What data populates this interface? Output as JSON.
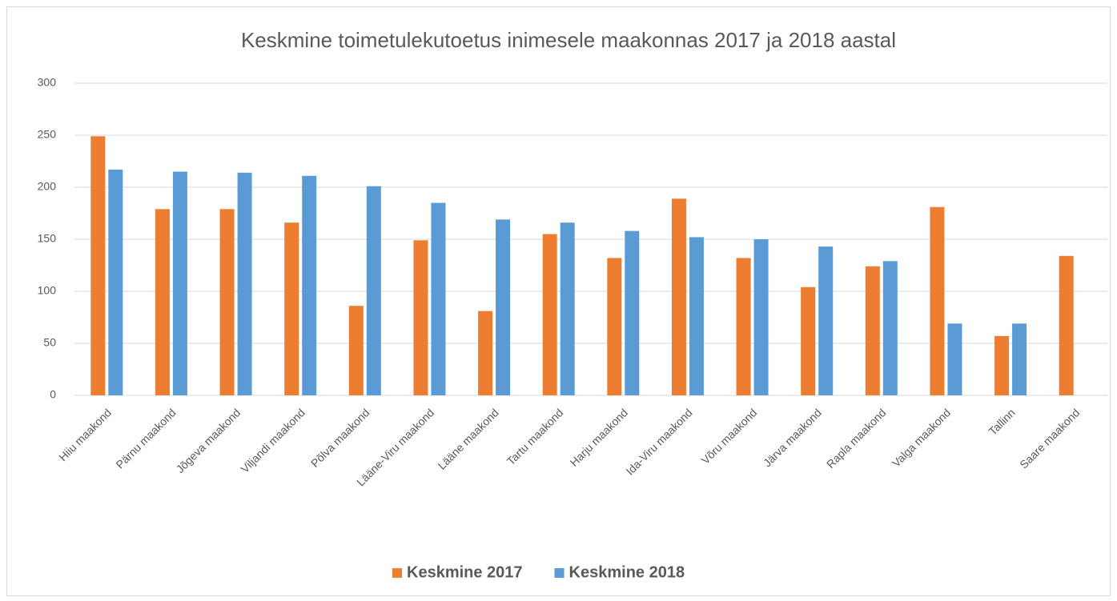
{
  "chart_data": {
    "type": "bar",
    "title": "Keskmine toimetulekutoetus inimesele maakonnas 2017 ja 2018 aastal",
    "categories": [
      "Hiiu maakond",
      "Pärnu maakond",
      "Jõgeva maakond",
      "Viljandi maakond",
      "Põlva maakond",
      "Lääne-Viru maakond",
      "Lääne maakond",
      "Tartu maakond",
      "Harju maakond",
      "Ida-Viru maakond",
      "Võru maakond",
      "Järva maakond",
      "Rapla maakond",
      "Valga maakond",
      "Tallinn",
      "Saare maakond"
    ],
    "series": [
      {
        "name": "Keskmine 2017",
        "color": "#ed7d31",
        "values": [
          249,
          179,
          179,
          166,
          86,
          149,
          81,
          155,
          132,
          189,
          132,
          104,
          124,
          181,
          57,
          134
        ]
      },
      {
        "name": "Keskmine 2018",
        "color": "#5b9bd5",
        "values": [
          217,
          215,
          214,
          211,
          201,
          185,
          169,
          166,
          158,
          152,
          150,
          143,
          129,
          69,
          69,
          null
        ]
      }
    ],
    "ylim": [
      0,
      300
    ],
    "yticks": [
      0,
      50,
      100,
      150,
      200,
      250,
      300
    ],
    "grid": true,
    "legend": "bottom"
  }
}
